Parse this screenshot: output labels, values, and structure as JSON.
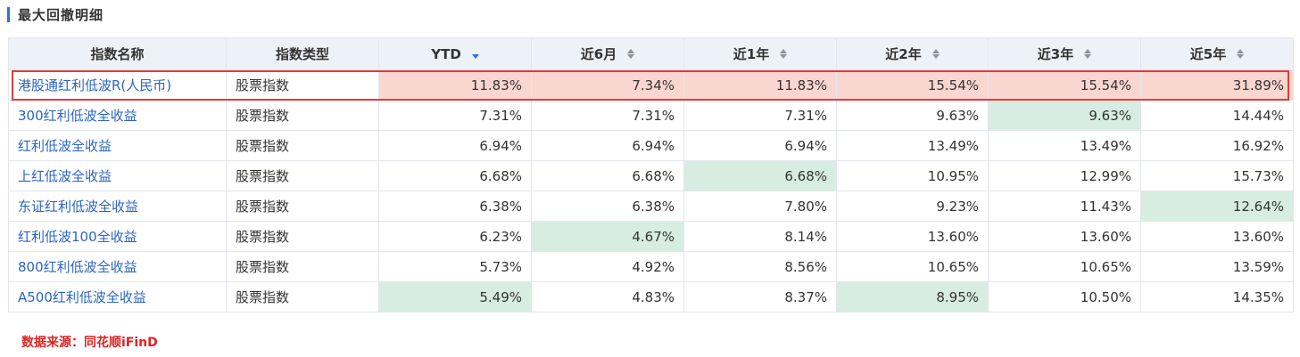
{
  "section": {
    "title": "最大回撤明细"
  },
  "table": {
    "headers": [
      "指数名称",
      "指数类型",
      "YTD",
      "近6月",
      "近1年",
      "近2年",
      "近3年",
      "近5年"
    ],
    "rows": [
      {
        "name": "港股通红利低波R(人民币)",
        "type": "股票指数",
        "values": [
          "11.83%",
          "7.34%",
          "11.83%",
          "15.54%",
          "15.54%",
          "31.89%"
        ],
        "highlight": [
          "red",
          "red",
          "red",
          "red",
          "red",
          "red"
        ]
      },
      {
        "name": "300红利低波全收益",
        "type": "股票指数",
        "values": [
          "7.31%",
          "7.31%",
          "7.31%",
          "9.63%",
          "9.63%",
          "14.44%"
        ],
        "highlight": [
          "",
          "",
          "",
          "",
          "green",
          ""
        ]
      },
      {
        "name": "红利低波全收益",
        "type": "股票指数",
        "values": [
          "6.94%",
          "6.94%",
          "6.94%",
          "13.49%",
          "13.49%",
          "16.92%"
        ],
        "highlight": [
          "",
          "",
          "",
          "",
          "",
          ""
        ]
      },
      {
        "name": "上红低波全收益",
        "type": "股票指数",
        "values": [
          "6.68%",
          "6.68%",
          "6.68%",
          "10.95%",
          "12.99%",
          "15.73%"
        ],
        "highlight": [
          "",
          "",
          "green",
          "",
          "",
          ""
        ]
      },
      {
        "name": "东证红利低波全收益",
        "type": "股票指数",
        "values": [
          "6.38%",
          "6.38%",
          "7.80%",
          "9.23%",
          "11.43%",
          "12.64%"
        ],
        "highlight": [
          "",
          "",
          "",
          "",
          "",
          "green"
        ]
      },
      {
        "name": "红利低波100全收益",
        "type": "股票指数",
        "values": [
          "6.23%",
          "4.67%",
          "8.14%",
          "13.60%",
          "13.60%",
          "13.60%"
        ],
        "highlight": [
          "",
          "green",
          "",
          "",
          "",
          ""
        ]
      },
      {
        "name": "800红利低波全收益",
        "type": "股票指数",
        "values": [
          "5.73%",
          "4.92%",
          "8.56%",
          "10.65%",
          "10.65%",
          "13.59%"
        ],
        "highlight": [
          "",
          "",
          "",
          "",
          "",
          ""
        ]
      },
      {
        "name": "A500红利低波全收益",
        "type": "股票指数",
        "values": [
          "5.49%",
          "4.83%",
          "8.37%",
          "8.95%",
          "10.50%",
          "14.35%"
        ],
        "highlight": [
          "green",
          "",
          "",
          "green",
          "",
          ""
        ]
      }
    ]
  },
  "footer": {
    "source": "数据来源：同花顺iFinD"
  },
  "colors": {
    "accent": "#2f6fe0",
    "highlight_red": "#fad6d0",
    "highlight_green": "#d7ede2",
    "frame_red": "#e23b3b",
    "source_red": "#e02222",
    "link_blue": "#2a64c5"
  }
}
